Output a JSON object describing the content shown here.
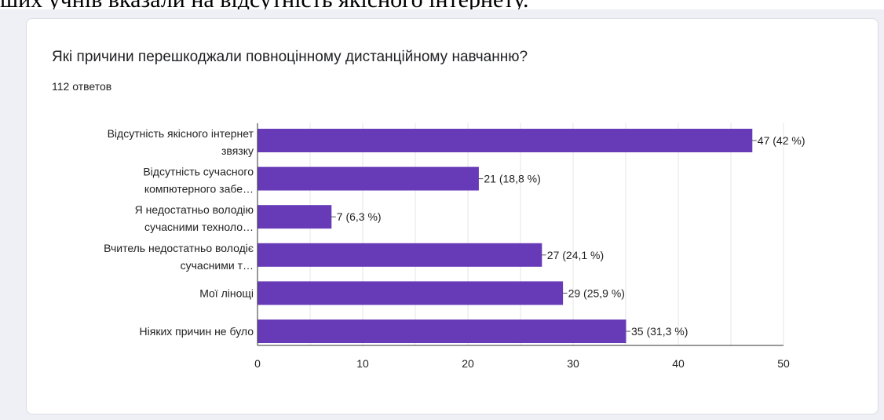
{
  "doc_text": "ших учнів вказали на відсутність якісного інтернету.",
  "form": {
    "question": "Які причини перешкоджали повноцінному дистанційному навчанню?",
    "responses": "112 ответов"
  },
  "colors": {
    "bar": "#673ab7",
    "grid": "#e6e6e6",
    "axis": "#333333",
    "text": "#222222"
  },
  "chart_data": {
    "type": "bar",
    "orientation": "horizontal",
    "categories": [
      [
        "Відсутність якісного інтернет",
        "звязку"
      ],
      [
        "Відсутність сучасного",
        "компютерного забе…"
      ],
      [
        "Я недостатньо володію",
        "сучасними техноло…"
      ],
      [
        "Вчитель недостатньо володіє",
        "сучасними т…"
      ],
      [
        "Мої лінощі"
      ],
      [
        "Ніяких причин не було"
      ]
    ],
    "values": [
      47,
      21,
      7,
      27,
      29,
      35
    ],
    "data_labels": [
      "47 (42 %)",
      "21 (18,8 %)",
      "7 (6,3 %)",
      "27 (24,1 %)",
      "29 (25,9 %)",
      "35 (31,3 %)"
    ],
    "xlim": [
      0,
      50
    ],
    "xticks": [
      0,
      10,
      20,
      30,
      40,
      50
    ],
    "grid": true
  }
}
